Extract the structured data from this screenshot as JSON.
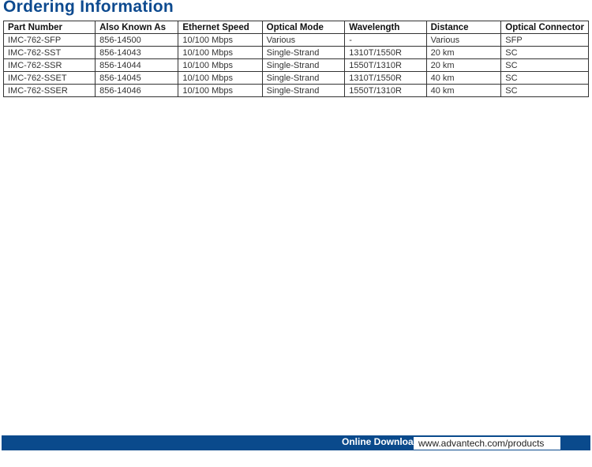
{
  "title": "Ordering Information",
  "table": {
    "headers": [
      "Part Number",
      "Also Known As",
      "Ethernet Speed",
      "Optical Mode",
      "Wavelength",
      "Distance",
      "Optical Connector"
    ],
    "rows": [
      [
        "IMC-762-SFP",
        "856-14500",
        "10/100 Mbps",
        "Various",
        "-",
        "Various",
        "SFP"
      ],
      [
        "IMC-762-SST",
        "856-14043",
        "10/100 Mbps",
        "Single-Strand",
        "1310T/1550R",
        "20 km",
        "SC"
      ],
      [
        "IMC-762-SSR",
        "856-14044",
        "10/100 Mbps",
        "Single-Strand",
        "1550T/1310R",
        "20 km",
        "SC"
      ],
      [
        "IMC-762-SSET",
        "856-14045",
        "10/100 Mbps",
        "Single-Strand",
        "1310T/1550R",
        "40 km",
        "SC"
      ],
      [
        "IMC-762-SSER",
        "856-14046",
        "10/100 Mbps",
        "Single-Strand",
        "1550T/1310R",
        "40 km",
        "SC"
      ]
    ]
  },
  "footer": {
    "label": "Online Download",
    "url": "www.advantech.com/products"
  },
  "colors": {
    "brand": "#0a4a8c"
  }
}
